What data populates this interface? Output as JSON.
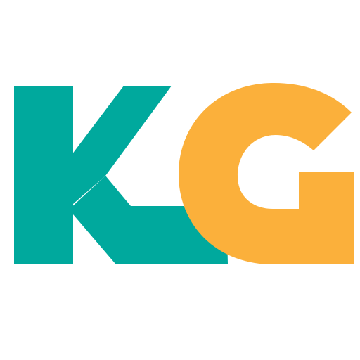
{
  "logo": {
    "letters": [
      "K",
      "G"
    ],
    "colors": {
      "letter_k": "#00a99d",
      "letter_g": "#fbb03b",
      "background": "#ffffff"
    }
  }
}
